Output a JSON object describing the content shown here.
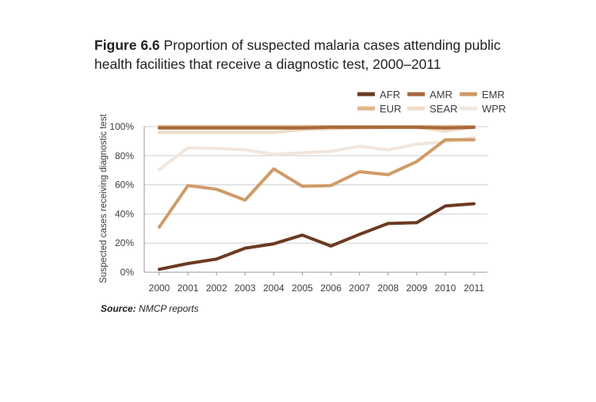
{
  "figure": {
    "label": "Figure 6.6",
    "title": "Proportion of suspected malaria cases attending public health facilities that receive a diagnostic test, 2000–2011",
    "source_label": "Source:",
    "source_text": "NMCP reports"
  },
  "chart_data": {
    "type": "line",
    "title": "Proportion of suspected malaria cases attending public health facilities that receive a diagnostic test, 2000–2011",
    "xlabel": "",
    "ylabel": "Suspected cases receiving diagnostic test",
    "x": [
      "2000",
      "2001",
      "2002",
      "2003",
      "2004",
      "2005",
      "2006",
      "2007",
      "2008",
      "2009",
      "2010",
      "2011"
    ],
    "ylim": [
      0,
      100
    ],
    "yticks": [
      0,
      20,
      40,
      60,
      80,
      100
    ],
    "ytick_labels": [
      "0%",
      "20%",
      "40%",
      "60%",
      "80%",
      "100%"
    ],
    "grid": true,
    "legend_position": "top-right",
    "series": [
      {
        "name": "AFR",
        "color": "#6b3a22",
        "values": [
          2,
          6,
          9,
          16.5,
          19.5,
          25.5,
          18,
          26,
          33.5,
          34,
          45.5,
          47
        ]
      },
      {
        "name": "AMR",
        "color": "#a8683c",
        "values": [
          99,
          99,
          99,
          99,
          99,
          99,
          99.5,
          99.5,
          99.5,
          99.5,
          99,
          99.5
        ]
      },
      {
        "name": "EMR",
        "color": "#cf9b68",
        "values": [
          31,
          59.5,
          57,
          49.5,
          71,
          59,
          59.5,
          69,
          67,
          76,
          91,
          91
        ]
      },
      {
        "name": "EUR",
        "color": "#e2b68a",
        "values": [
          100,
          100,
          100,
          100,
          100,
          100,
          100,
          100,
          100,
          100,
          100,
          100
        ]
      },
      {
        "name": "SEAR",
        "color": "#efdcc8",
        "values": [
          96,
          96,
          96,
          96,
          96,
          98,
          98.5,
          99,
          99.5,
          99.5,
          97,
          99.5
        ]
      },
      {
        "name": "WPR",
        "color": "#f2e6dc",
        "values": [
          70.5,
          85.5,
          85,
          84,
          81,
          82,
          83,
          86.5,
          84,
          88,
          89.5,
          92.5
        ]
      }
    ]
  }
}
